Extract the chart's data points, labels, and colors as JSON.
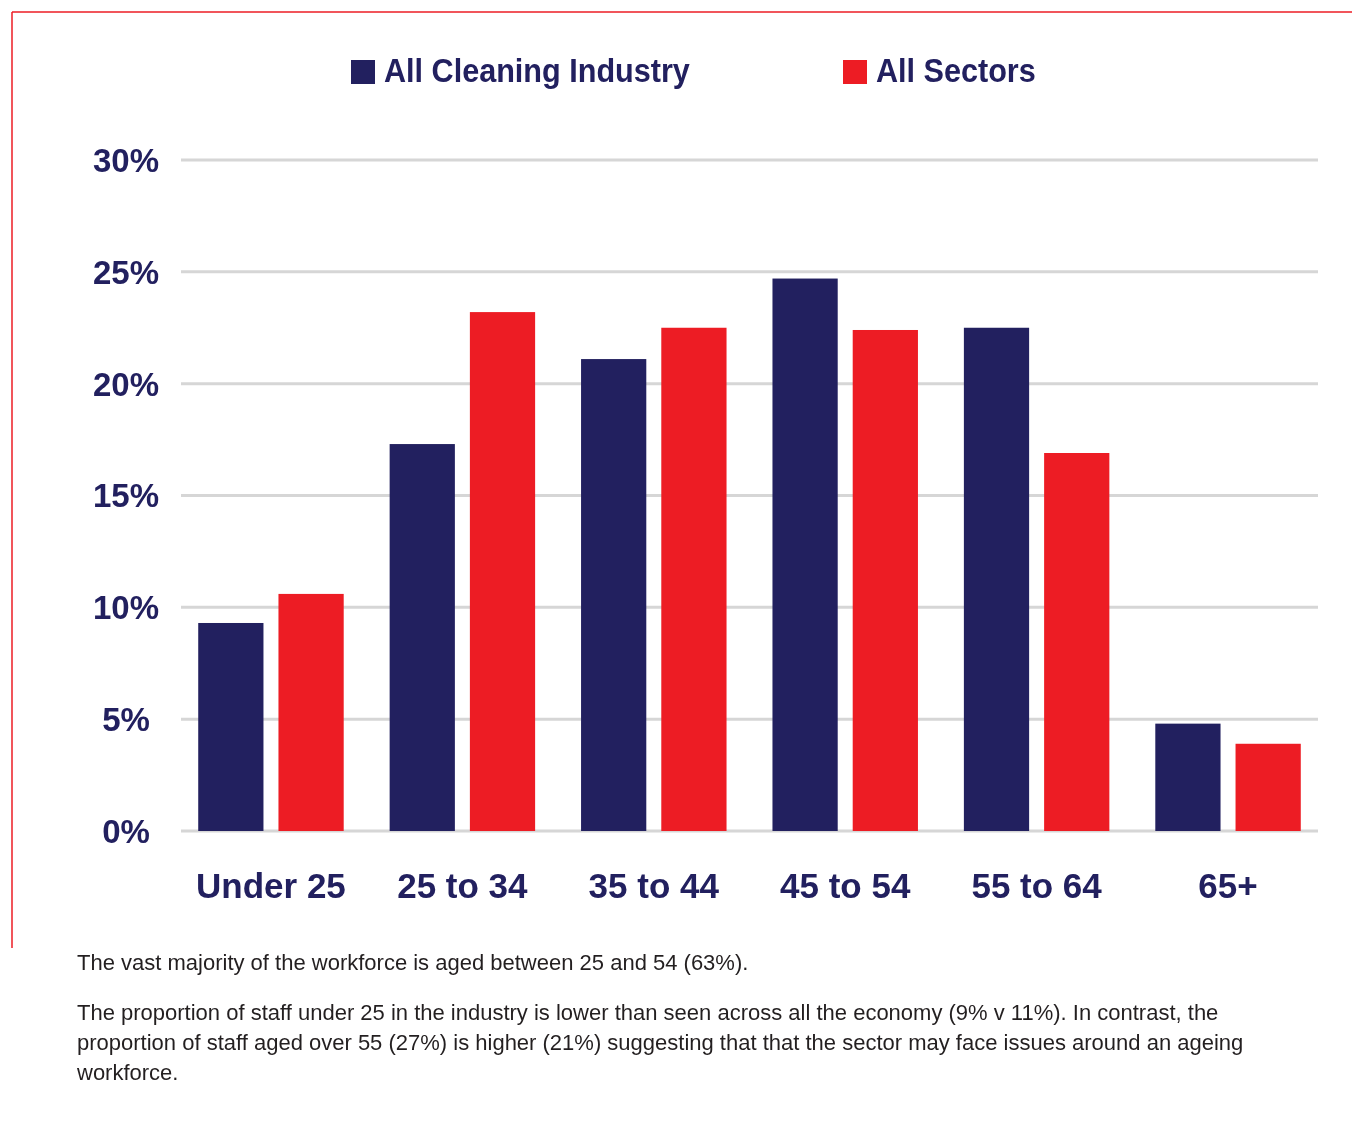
{
  "chart_data": {
    "type": "bar",
    "categories": [
      "Under 25",
      "25 to 34",
      "35 to 44",
      "45 to 54",
      "55 to 64",
      "65+"
    ],
    "series": [
      {
        "name": "All Cleaning Industry",
        "color": "#22205f",
        "values": [
          9.3,
          17.3,
          21.1,
          24.7,
          22.5,
          4.8
        ]
      },
      {
        "name": "All Sectors",
        "color": "#ed1c24",
        "values": [
          10.6,
          23.2,
          22.5,
          22.4,
          16.9,
          3.9
        ]
      }
    ],
    "ylim": [
      0,
      30
    ],
    "yticks": [
      {
        "value": 0,
        "label": "0%"
      },
      {
        "value": 5,
        "label": "5%"
      },
      {
        "value": 10,
        "label": "10%"
      },
      {
        "value": 15,
        "label": "15%"
      },
      {
        "value": 20,
        "label": "20%"
      },
      {
        "value": 25,
        "label": "25%"
      },
      {
        "value": 30,
        "label": "30%"
      }
    ],
    "grid": "y",
    "legend": "top",
    "annotations": [
      "The vast majority of the workforce is aged between 25 and 54 (63%).",
      "The proportion of staff under 25 in the industry is lower than seen across all the economy (9% v 11%). In contrast, the proportion of staff aged over 55 (27%) is higher (21%) suggesting that that the sector may face issues around an ageing workforce."
    ]
  }
}
